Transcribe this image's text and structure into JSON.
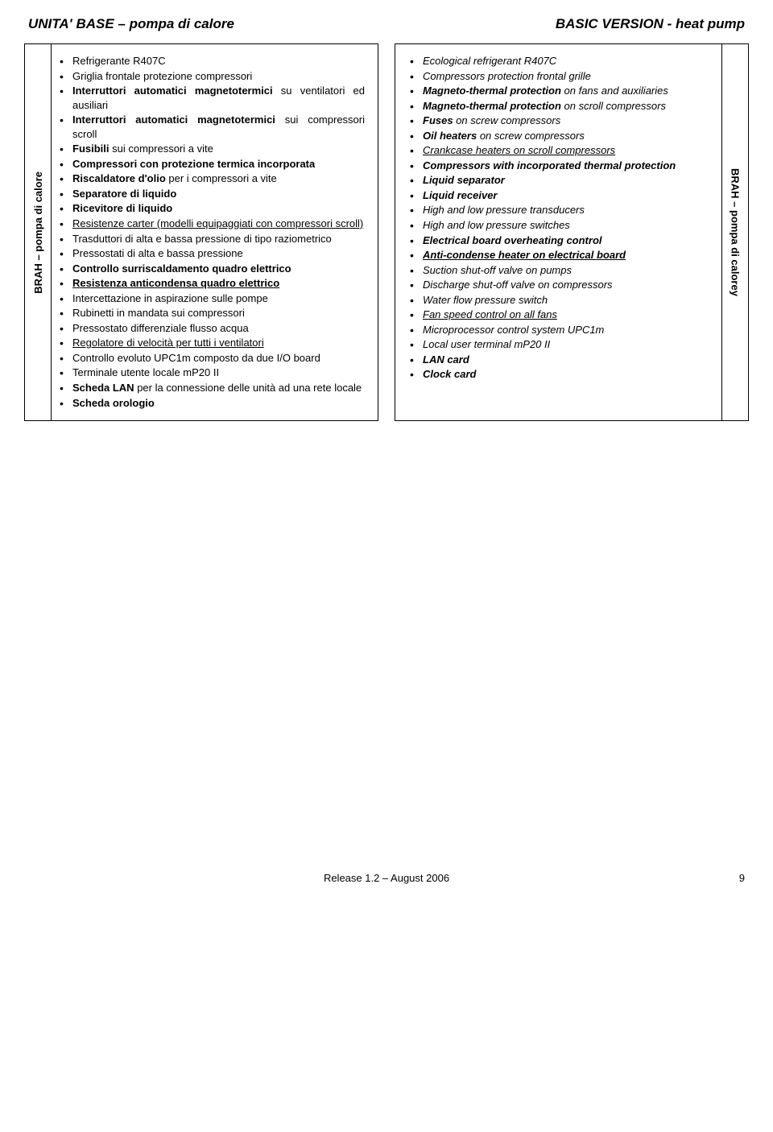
{
  "header": {
    "left": "UNITA' BASE – pompa di calore",
    "right": "BASIC VERSION - heat pump"
  },
  "left_col": {
    "side_label": "BRAH – pompa di calore",
    "items": [
      {
        "text": "Refrigerante R407C",
        "style": ""
      },
      {
        "text": "Griglia frontale protezione compressori",
        "style": ""
      },
      {
        "prefix": "Interruttori automatici magnetotermici",
        "suffix": " su ventilatori ed ausiliari",
        "style": "bold"
      },
      {
        "prefix": "Interruttori automatici magnetotermici",
        "suffix": " sui compressori scroll",
        "style": "bold"
      },
      {
        "prefix": "Fusibili",
        "suffix": " sui compressori a vite",
        "style": "bold"
      },
      {
        "text": "Compressori con protezione termica incorporata",
        "style": "bold"
      },
      {
        "prefix": "Riscaldatore d'olio",
        "suffix": " per i compressori a vite",
        "style": "bold"
      },
      {
        "text": "Separatore di liquido",
        "style": "bold"
      },
      {
        "text": "Ricevitore di liquido",
        "style": "bold"
      },
      {
        "text": "Resistenze carter (modelli equipaggiati con compressori scroll)",
        "style": "underline"
      },
      {
        "text": "Trasduttori di alta e bassa pressione di tipo raziometrico",
        "style": ""
      },
      {
        "text": "Pressostati di alta e bassa pressione",
        "style": ""
      },
      {
        "text": "Controllo surriscaldamento quadro elettrico",
        "style": "bold"
      },
      {
        "text": "Resistenza anticondensa quadro elettrico",
        "style": "bold underline"
      },
      {
        "text": "Intercettazione in aspirazione sulle pompe",
        "style": ""
      },
      {
        "text": "Rubinetti in mandata sui compressori",
        "style": ""
      },
      {
        "text": "Pressostato differenziale flusso acqua",
        "style": ""
      },
      {
        "text": "Regolatore di velocità per tutti i ventilatori",
        "style": "underline"
      },
      {
        "text": "Controllo evoluto UPC1m composto da due I/O board",
        "style": ""
      },
      {
        "text": "Terminale utente locale mP20 II",
        "style": ""
      },
      {
        "prefix": "Scheda LAN",
        "suffix": " per la connessione delle unità ad una rete locale",
        "style": "bold"
      },
      {
        "text": "Scheda orologio",
        "style": "bold"
      }
    ]
  },
  "right_col": {
    "side_label": "BRAH – pompa di calorey",
    "items": [
      {
        "text": "Ecological refrigerant R407C",
        "style": "italic"
      },
      {
        "text": "Compressors protection frontal grille",
        "style": "italic"
      },
      {
        "prefix": "Magneto-thermal protection",
        "suffix": " on fans and auxiliaries",
        "style": "bolditalic",
        "suffix_style": "italic"
      },
      {
        "prefix": "Magneto-thermal protection",
        "suffix": " on scroll compressors",
        "style": "bolditalic",
        "suffix_style": "italic"
      },
      {
        "prefix": "Fuses",
        "suffix": " on screw compressors",
        "style": "bolditalic",
        "suffix_style": "italic"
      },
      {
        "prefix": "Oil heaters",
        "suffix": " on screw compressors",
        "style": "bolditalic",
        "suffix_style": "italic"
      },
      {
        "text": "Crankcase heaters on scroll compressors",
        "style": "italic underline"
      },
      {
        "text": "Compressors with incorporated thermal protection",
        "style": "bolditalic"
      },
      {
        "text": "Liquid separator",
        "style": "bolditalic"
      },
      {
        "text": "Liquid receiver",
        "style": "bolditalic"
      },
      {
        "text": "High and low pressure transducers",
        "style": "italic"
      },
      {
        "text": "High and low pressure switches",
        "style": "italic"
      },
      {
        "text": "Electrical board overheating control",
        "style": "bolditalic"
      },
      {
        "text": "Anti-condense heater on electrical board",
        "style": "bolditalic underline"
      },
      {
        "text": "Suction shut-off valve on pumps",
        "style": "italic"
      },
      {
        "text": "Discharge shut-off valve on compressors",
        "style": "italic"
      },
      {
        "text": "Water flow pressure switch",
        "style": "italic"
      },
      {
        "text": "Fan speed control on all fans",
        "style": "italic underline"
      },
      {
        "text": "Microprocessor control system UPC1m",
        "style": "italic"
      },
      {
        "text": "Local user terminal mP20 II",
        "style": "italic"
      },
      {
        "text": "LAN card",
        "style": "bolditalic"
      },
      {
        "text": "Clock card",
        "style": "bolditalic"
      }
    ]
  },
  "footer": {
    "release": "Release 1.2 – August 2006",
    "page": "9"
  }
}
